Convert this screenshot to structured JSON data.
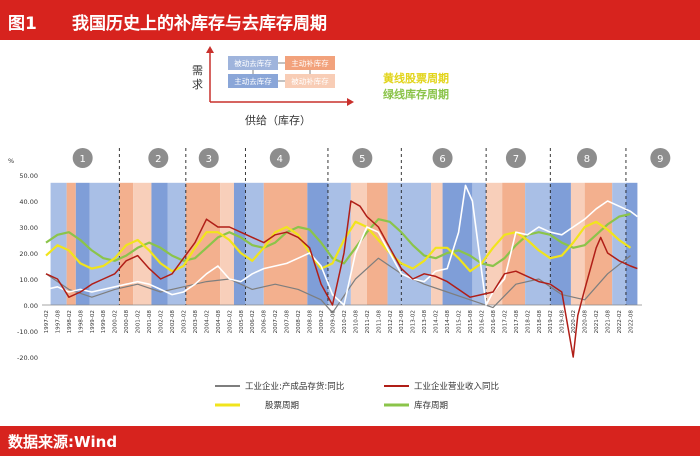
{
  "header": {
    "figure_label": "图1",
    "title": "我国历史上的补库存与去库存周期"
  },
  "footer": {
    "source": "数据来源:Wind"
  },
  "diagram": {
    "y_axis_label": "需求",
    "x_axis_label": "供给（库存）",
    "boxes": [
      "被动去库存",
      "主动补库存",
      "主动去库存",
      "被动补库存"
    ],
    "box_colors": [
      "#9fb4dc",
      "#f2a27c",
      "#8aa6d8",
      "#f8cdb6"
    ]
  },
  "chart_legend_labels": {
    "stock_cycle_label": "黄线股票周期",
    "inventory_cycle_label": "绿线库存周期"
  },
  "colors": {
    "header": "#d7231e",
    "blue_band": "#a9bfe6",
    "blue_band_deep": "#7f9ed8",
    "orange_band": "#f3b08e",
    "orange_band_light": "#f8cfba",
    "inventory_series": "#ffffff",
    "revenue_series": "#b01e17",
    "stock_cycle": "#f1e41c",
    "inventory_cycle": "#8bc44a",
    "grey_series": "#7e7e7e"
  },
  "chart_data": {
    "type": "line",
    "y_unit": "%",
    "ylim": [
      -20,
      50
    ],
    "yticks": [
      "50.00",
      "40.00",
      "30.00",
      "20.00",
      "10.00",
      "0.00",
      "-10.00",
      "-20.00"
    ],
    "x_tick_labels": [
      "1997-02",
      "1997-08",
      "1998-02",
      "1998-08",
      "1999-02",
      "1999-08",
      "2000-02",
      "2000-08",
      "2001-02",
      "2001-08",
      "2002-02",
      "2002-08",
      "2003-02",
      "2003-08",
      "2004-02",
      "2004-08",
      "2005-02",
      "2005-08",
      "2006-02",
      "2006-08",
      "2007-02",
      "2007-08",
      "2008-02",
      "2008-08",
      "2009-02",
      "2009-08",
      "2010-02",
      "2010-08",
      "2011-02",
      "2011-08",
      "2012-02",
      "2012-08",
      "2013-02",
      "2013-08",
      "2014-02",
      "2014-08",
      "2015-02",
      "2015-08",
      "2016-02",
      "2016-08",
      "2017-02",
      "2017-08",
      "2018-02",
      "2018-08",
      "2019-02",
      "2019-08",
      "2020-02",
      "2020-08",
      "2021-02",
      "2021-08",
      "2022-02",
      "2022-08"
    ],
    "cycle_markers": [
      {
        "label": "1",
        "x": 1998.6
      },
      {
        "label": "2",
        "x": 2001.9
      },
      {
        "label": "3",
        "x": 2004.1
      },
      {
        "label": "4",
        "x": 2007.2
      },
      {
        "label": "5",
        "x": 2010.8
      },
      {
        "label": "6",
        "x": 2014.3
      },
      {
        "label": "7",
        "x": 2017.5
      },
      {
        "label": "8",
        "x": 2020.6
      },
      {
        "label": "9",
        "x": 2023.8
      }
    ],
    "cycle_dividers": [
      2000.2,
      2003.1,
      2005.7,
      2009.3,
      2012.5,
      2016.2,
      2019.0,
      2022.3
    ],
    "bands": [
      {
        "from": 1997.2,
        "to": 1997.9,
        "kind": "blue"
      },
      {
        "from": 1997.9,
        "to": 1998.3,
        "kind": "orange"
      },
      {
        "from": 1998.3,
        "to": 1998.9,
        "kind": "blue_deep"
      },
      {
        "from": 1998.9,
        "to": 2000.2,
        "kind": "blue"
      },
      {
        "from": 2000.2,
        "to": 2000.8,
        "kind": "orange"
      },
      {
        "from": 2000.8,
        "to": 2001.6,
        "kind": "orange_light"
      },
      {
        "from": 2001.6,
        "to": 2002.3,
        "kind": "blue_deep"
      },
      {
        "from": 2002.3,
        "to": 2003.1,
        "kind": "blue"
      },
      {
        "from": 2003.1,
        "to": 2004.6,
        "kind": "orange"
      },
      {
        "from": 2004.6,
        "to": 2005.2,
        "kind": "orange_light"
      },
      {
        "from": 2005.2,
        "to": 2005.7,
        "kind": "blue_deep"
      },
      {
        "from": 2005.7,
        "to": 2006.5,
        "kind": "blue"
      },
      {
        "from": 2006.5,
        "to": 2008.4,
        "kind": "orange"
      },
      {
        "from": 2008.4,
        "to": 2009.3,
        "kind": "blue_deep"
      },
      {
        "from": 2009.3,
        "to": 2010.3,
        "kind": "blue"
      },
      {
        "from": 2010.3,
        "to": 2011.0,
        "kind": "orange_light"
      },
      {
        "from": 2011.0,
        "to": 2011.9,
        "kind": "orange"
      },
      {
        "from": 2011.9,
        "to": 2012.5,
        "kind": "blue"
      },
      {
        "from": 2012.5,
        "to": 2013.8,
        "kind": "blue"
      },
      {
        "from": 2013.8,
        "to": 2014.3,
        "kind": "orange_light"
      },
      {
        "from": 2014.3,
        "to": 2015.6,
        "kind": "blue_deep"
      },
      {
        "from": 2015.6,
        "to": 2016.2,
        "kind": "blue"
      },
      {
        "from": 2016.2,
        "to": 2016.9,
        "kind": "orange_light"
      },
      {
        "from": 2016.9,
        "to": 2017.9,
        "kind": "orange"
      },
      {
        "from": 2017.9,
        "to": 2019.0,
        "kind": "blue"
      },
      {
        "from": 2019.0,
        "to": 2019.9,
        "kind": "blue_deep"
      },
      {
        "from": 2019.9,
        "to": 2020.5,
        "kind": "orange_light"
      },
      {
        "from": 2020.5,
        "to": 2021.7,
        "kind": "orange"
      },
      {
        "from": 2021.7,
        "to": 2022.3,
        "kind": "blue"
      },
      {
        "from": 2022.3,
        "to": 2022.8,
        "kind": "blue_deep"
      }
    ],
    "series": [
      {
        "name": "工业企业:产成品存货:同比",
        "role": "inventory",
        "x": [
          1997.0,
          1997.5,
          1998.0,
          1998.5,
          1999.0,
          1999.5,
          2000.0,
          2000.5,
          2001.0,
          2001.5,
          2002.0,
          2002.5,
          2003.0,
          2003.5,
          2004.0,
          2004.5,
          2005.0,
          2005.5,
          2006.0,
          2006.5,
          2007.0,
          2007.5,
          2008.0,
          2008.5,
          2009.0,
          2009.5,
          2010.0,
          2010.5,
          2011.0,
          2011.5,
          2012.0,
          2012.5,
          2013.0,
          2013.5,
          2014.0,
          2014.5,
          2015.0,
          2015.3,
          2015.6,
          2015.9,
          2016.2,
          2016.5,
          2017.0,
          2017.5,
          2018.0,
          2018.5,
          2019.0,
          2019.5,
          2020.0,
          2020.5,
          2021.0,
          2021.5,
          2022.0,
          2022.5,
          2022.8
        ],
        "y": [
          6,
          7,
          5,
          6,
          5,
          6,
          7,
          8,
          9,
          8,
          6,
          4,
          5,
          8,
          12,
          15,
          10,
          9,
          12,
          14,
          15,
          16,
          18,
          20,
          15,
          4,
          0,
          20,
          30,
          28,
          20,
          12,
          10,
          9,
          13,
          14,
          28,
          46,
          40,
          20,
          0,
          5,
          10,
          28,
          27,
          30,
          28,
          27,
          30,
          33,
          37,
          40,
          38,
          36,
          34
        ]
      },
      {
        "name": "工业企业营业收入同比",
        "role": "revenue",
        "x": [
          1997.0,
          1997.5,
          1998.0,
          1998.5,
          1999.0,
          1999.5,
          2000.0,
          2000.5,
          2001.0,
          2001.5,
          2002.0,
          2002.5,
          2003.0,
          2003.5,
          2004.0,
          2004.5,
          2005.0,
          2005.5,
          2006.0,
          2006.5,
          2007.0,
          2007.5,
          2008.0,
          2008.5,
          2009.0,
          2009.5,
          2010.0,
          2010.3,
          2010.7,
          2011.0,
          2011.5,
          2012.0,
          2012.5,
          2013.0,
          2013.5,
          2014.0,
          2014.5,
          2015.0,
          2015.5,
          2016.0,
          2016.5,
          2017.0,
          2017.5,
          2018.0,
          2018.5,
          2019.0,
          2019.5,
          2020.0,
          2020.2,
          2020.5,
          2021.0,
          2021.2,
          2021.5,
          2022.0,
          2022.5,
          2022.8
        ],
        "y": [
          12,
          10,
          3,
          5,
          8,
          10,
          12,
          17,
          19,
          14,
          10,
          12,
          18,
          24,
          33,
          30,
          30,
          28,
          26,
          24,
          27,
          28,
          26,
          22,
          8,
          0,
          20,
          40,
          38,
          34,
          30,
          22,
          14,
          10,
          12,
          11,
          9,
          6,
          3,
          4,
          5,
          12,
          13,
          11,
          9,
          8,
          5,
          -20,
          -4,
          6,
          22,
          26,
          20,
          17,
          15,
          14
        ]
      },
      {
        "name": "股票周期",
        "role": "stock_cycle",
        "x": [
          1997.0,
          1997.5,
          1998.0,
          1998.5,
          1999.0,
          1999.5,
          2000.0,
          2000.5,
          2001.0,
          2001.5,
          2002.0,
          2002.5,
          2003.0,
          2003.5,
          2004.0,
          2004.5,
          2005.0,
          2005.5,
          2006.0,
          2006.5,
          2007.0,
          2007.5,
          2008.0,
          2008.5,
          2009.0,
          2009.5,
          2010.0,
          2010.5,
          2011.0,
          2011.5,
          2012.0,
          2012.5,
          2013.0,
          2013.5,
          2014.0,
          2014.5,
          2015.0,
          2015.5,
          2016.0,
          2016.5,
          2017.0,
          2017.5,
          2018.0,
          2018.5,
          2019.0,
          2019.5,
          2020.0,
          2020.5,
          2021.0,
          2021.5,
          2022.0,
          2022.5
        ],
        "y": [
          19,
          23,
          21,
          16,
          14,
          15,
          18,
          23,
          25,
          21,
          16,
          13,
          15,
          22,
          28,
          28,
          25,
          20,
          17,
          22,
          28,
          30,
          27,
          20,
          14,
          16,
          25,
          32,
          30,
          25,
          20,
          16,
          14,
          17,
          22,
          22,
          18,
          13,
          16,
          22,
          27,
          28,
          25,
          21,
          18,
          19,
          24,
          30,
          32,
          29,
          25,
          22
        ]
      },
      {
        "name": "库存周期",
        "role": "inventory_cycle",
        "x": [
          1997.0,
          1997.5,
          1998.0,
          1998.5,
          1999.0,
          1999.5,
          2000.0,
          2000.5,
          2001.0,
          2001.5,
          2002.0,
          2002.5,
          2003.0,
          2003.5,
          2004.0,
          2004.5,
          2005.0,
          2005.5,
          2006.0,
          2006.5,
          2007.0,
          2007.5,
          2008.0,
          2008.5,
          2009.0,
          2009.5,
          2010.0,
          2010.5,
          2011.0,
          2011.5,
          2012.0,
          2012.5,
          2013.0,
          2013.5,
          2014.0,
          2014.5,
          2015.0,
          2015.5,
          2016.0,
          2016.5,
          2017.0,
          2017.5,
          2018.0,
          2018.5,
          2019.0,
          2019.5,
          2020.0,
          2020.5,
          2021.0,
          2021.5,
          2022.0,
          2022.5
        ],
        "y": [
          24,
          27,
          28,
          25,
          21,
          18,
          17,
          19,
          22,
          24,
          22,
          19,
          17,
          18,
          22,
          26,
          28,
          26,
          23,
          22,
          24,
          28,
          30,
          29,
          24,
          18,
          16,
          22,
          28,
          33,
          32,
          28,
          23,
          19,
          18,
          20,
          21,
          19,
          16,
          15,
          18,
          23,
          27,
          28,
          27,
          24,
          22,
          23,
          27,
          31,
          34,
          35
        ]
      },
      {
        "name": "",
        "role": "grey_series",
        "x": [
          1997.0,
          1998.0,
          1999.0,
          2000.0,
          2001.0,
          2002.0,
          2003.0,
          2004.0,
          2005.0,
          2006.0,
          2007.0,
          2008.0,
          2009.0,
          2009.5,
          2010.5,
          2011.5,
          2012.5,
          2013.5,
          2014.5,
          2015.5,
          2016.5,
          2017.5,
          2018.5,
          2019.5,
          2020.5,
          2021.5,
          2022.5
        ],
        "y": [
          12,
          6,
          3,
          6,
          8,
          5,
          7,
          9,
          10,
          6,
          8,
          6,
          2,
          -3,
          10,
          18,
          12,
          8,
          5,
          2,
          -1,
          8,
          10,
          4,
          2,
          12,
          19
        ]
      }
    ]
  }
}
